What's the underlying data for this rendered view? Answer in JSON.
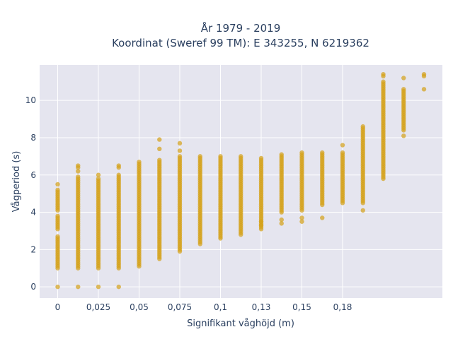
{
  "chart_data": {
    "type": "scatter",
    "title_lines": [
      "År 1979 - 2019",
      "Koordinat (Sweref 99 TM): E 343255, N 6219362"
    ],
    "xlabel": "Signifikant våghöjd (m)",
    "ylabel": "Vågperiod (s)",
    "x_ticks": [
      {
        "label": "0",
        "index": 0
      },
      {
        "label": "0,025",
        "index": 2
      },
      {
        "label": "0,05",
        "index": 4
      },
      {
        "label": "0,075",
        "index": 6
      },
      {
        "label": "0,1",
        "index": 8
      },
      {
        "label": "0,13",
        "index": 10
      },
      {
        "label": "0,15",
        "index": 12
      },
      {
        "label": "0,18",
        "index": 14
      }
    ],
    "y_ticks": [
      0,
      2,
      4,
      6,
      8,
      10
    ],
    "ylim": [
      -0.6,
      11.9
    ],
    "grid": true,
    "point_color": "#d4a118",
    "columns": [
      {
        "index": 0,
        "ranges": [
          [
            1.0,
            2.7
          ],
          [
            3.1,
            3.8
          ],
          [
            4.1,
            5.2
          ]
        ],
        "points": [
          0,
          5.5
        ]
      },
      {
        "index": 1,
        "ranges": [
          [
            1.0,
            5.9
          ]
        ],
        "points": [
          0,
          6.2,
          6.4,
          6.5
        ]
      },
      {
        "index": 2,
        "ranges": [
          [
            1.0,
            5.8
          ]
        ],
        "points": [
          0,
          6.0
        ]
      },
      {
        "index": 3,
        "ranges": [
          [
            1.0,
            6.0
          ]
        ],
        "points": [
          0,
          6.4,
          6.5
        ]
      },
      {
        "index": 4,
        "ranges": [
          [
            1.1,
            6.7
          ]
        ],
        "points": []
      },
      {
        "index": 5,
        "ranges": [
          [
            1.5,
            6.8
          ]
        ],
        "points": [
          7.4,
          7.9
        ]
      },
      {
        "index": 6,
        "ranges": [
          [
            1.9,
            7.0
          ]
        ],
        "points": [
          7.3,
          7.7
        ]
      },
      {
        "index": 7,
        "ranges": [
          [
            2.3,
            7.0
          ]
        ],
        "points": []
      },
      {
        "index": 8,
        "ranges": [
          [
            2.6,
            7.0
          ]
        ],
        "points": []
      },
      {
        "index": 9,
        "ranges": [
          [
            2.8,
            7.0
          ]
        ],
        "points": []
      },
      {
        "index": 10,
        "ranges": [
          [
            3.1,
            6.9
          ]
        ],
        "points": [
          3.3,
          3.5
        ]
      },
      {
        "index": 11,
        "ranges": [
          [
            4.0,
            7.0
          ]
        ],
        "points": [
          3.4,
          3.6,
          7.1
        ]
      },
      {
        "index": 12,
        "ranges": [
          [
            4.1,
            7.1
          ]
        ],
        "points": [
          3.5,
          3.7,
          7.2
        ]
      },
      {
        "index": 13,
        "ranges": [
          [
            4.4,
            7.1
          ]
        ],
        "points": [
          3.7,
          7.2
        ]
      },
      {
        "index": 14,
        "ranges": [
          [
            4.5,
            7.2
          ]
        ],
        "points": [
          7.6
        ]
      },
      {
        "index": 15,
        "ranges": [
          [
            4.5,
            8.6
          ]
        ],
        "points": [
          4.1
        ]
      },
      {
        "index": 16,
        "ranges": [
          [
            5.8,
            11.0
          ]
        ],
        "points": [
          11.3,
          11.4
        ]
      },
      {
        "index": 17,
        "ranges": [
          [
            8.4,
            10.6
          ]
        ],
        "points": [
          8.1,
          11.2
        ]
      },
      {
        "index": 18,
        "ranges": [],
        "points": [
          10.6,
          11.3,
          11.4
        ]
      }
    ]
  }
}
